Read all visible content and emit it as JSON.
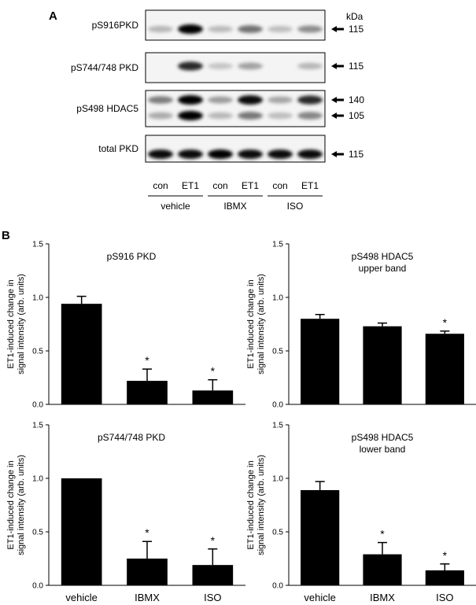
{
  "figure": {
    "panel_a_letter": "A",
    "panel_b_letter": "B",
    "kda_unit": "kDa",
    "blots": [
      {
        "label": "pS916PKD",
        "markers": [
          "115"
        ],
        "lanes": [
          0.12,
          1.0,
          0.1,
          0.45,
          0.08,
          0.32
        ]
      },
      {
        "label": "pS744/748 PKD",
        "markers": [
          "115"
        ],
        "lanes": [
          0.0,
          0.8,
          0.05,
          0.22,
          0.0,
          0.12
        ]
      },
      {
        "label": "pS498 HDAC5",
        "markers": [
          "140",
          "105"
        ],
        "lanes": [
          0.4,
          1.0,
          0.25,
          0.95,
          0.2,
          0.8
        ]
      },
      {
        "label": "total PKD",
        "markers": [
          "115"
        ],
        "lanes": [
          0.95,
          0.95,
          1.0,
          0.95,
          0.95,
          0.95
        ]
      }
    ],
    "lane_labels": [
      "con",
      "ET1",
      "con",
      "ET1",
      "con",
      "ET1"
    ],
    "group_labels": [
      "vehicle",
      "IBMX",
      "ISO"
    ]
  },
  "chart_data": [
    {
      "type": "bar",
      "title_lines": [
        "pS916 PKD"
      ],
      "categories": [
        "vehicle",
        "IBMX",
        "ISO"
      ],
      "show_categories": false,
      "values": [
        0.94,
        0.22,
        0.13
      ],
      "errors": [
        0.07,
        0.11,
        0.1
      ],
      "significant": [
        false,
        true,
        true
      ],
      "significance_mark": "*",
      "ylabel_lines": [
        "ET1-induced change in",
        "signal intensity (arb. units)"
      ],
      "ylim": [
        0,
        1.5
      ],
      "yticks": [
        "0.0",
        "0.5",
        "1.0",
        "1.5"
      ]
    },
    {
      "type": "bar",
      "title_lines": [
        "pS498 HDAC5",
        "upper band"
      ],
      "categories": [
        "vehicle",
        "IBMX",
        "ISO"
      ],
      "show_categories": false,
      "values": [
        0.8,
        0.73,
        0.66
      ],
      "errors": [
        0.04,
        0.03,
        0.025
      ],
      "significant": [
        false,
        false,
        true
      ],
      "significance_mark": "*",
      "ylabel_lines": [
        "ET1-induced change in",
        "signal intensity (arb. units)"
      ],
      "ylim": [
        0,
        1.5
      ],
      "yticks": [
        "0.0",
        "0.5",
        "1.0",
        "1.5"
      ]
    },
    {
      "type": "bar",
      "title_lines": [
        "pS744/748 PKD"
      ],
      "categories": [
        "vehicle",
        "IBMX",
        "ISO"
      ],
      "show_categories": true,
      "values": [
        1.0,
        0.25,
        0.19
      ],
      "errors": [
        0.0,
        0.16,
        0.15
      ],
      "significant": [
        false,
        true,
        true
      ],
      "significance_mark": "*",
      "ylabel_lines": [
        "ET1-induced change in",
        "signal intensity (arb. units)"
      ],
      "ylim": [
        0,
        1.5
      ],
      "yticks": [
        "0.0",
        "0.5",
        "1.0",
        "1.5"
      ]
    },
    {
      "type": "bar",
      "title_lines": [
        "pS498 HDAC5",
        "lower band"
      ],
      "categories": [
        "vehicle",
        "IBMX",
        "ISO"
      ],
      "show_categories": true,
      "values": [
        0.89,
        0.29,
        0.14
      ],
      "errors": [
        0.08,
        0.11,
        0.06
      ],
      "significant": [
        false,
        true,
        true
      ],
      "significance_mark": "*",
      "ylabel_lines": [
        "ET1-induced change in",
        "signal intensity (arb. units)"
      ],
      "ylim": [
        0,
        1.5
      ],
      "yticks": [
        "0.0",
        "0.5",
        "1.0",
        "1.5"
      ]
    }
  ]
}
